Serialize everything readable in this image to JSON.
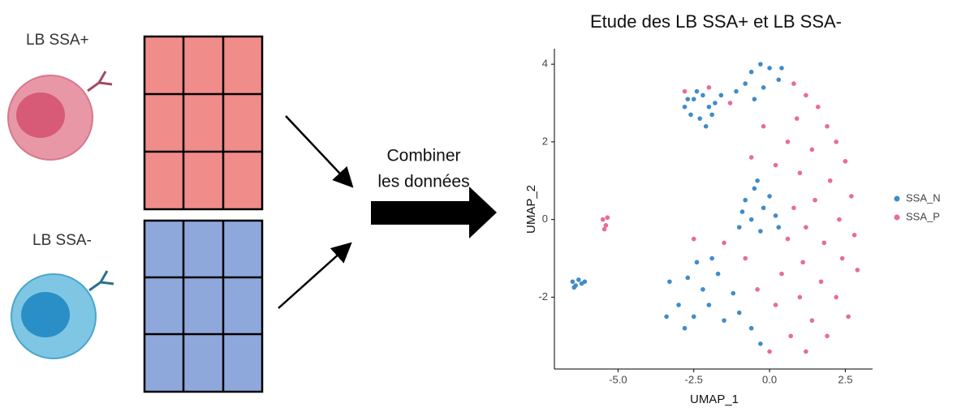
{
  "labels": {
    "cell_positive": "LB SSA+",
    "cell_negative": "LB SSA-",
    "combine_line1": "Combiner",
    "combine_line2": "les données"
  },
  "chart_data": {
    "type": "scatter",
    "title": "Etude des LB SSA+ et LB SSA-",
    "xlabel": "UMAP_1",
    "ylabel": "UMAP_2",
    "xlim": [
      -7.1,
      3.4
    ],
    "ylim": [
      -3.85,
      4.4
    ],
    "xticks": [
      {
        "value": -5,
        "label": "-5.0"
      },
      -2.5,
      {
        "value": 0,
        "label": "0.0"
      },
      2.5
    ],
    "yticks": [
      -2,
      0,
      2,
      4
    ],
    "series": [
      {
        "name": "SSA_N",
        "color": "#3f8ccb",
        "x": [
          -6.5,
          -6.4,
          -6.3,
          -6.2,
          -6.45,
          -6.1,
          -2.8,
          -2.5,
          -2.2,
          -2.0,
          -1.8,
          -2.6,
          -2.3,
          -1.9,
          -2.4,
          -2.1,
          -2.7,
          -1.6,
          -0.6,
          -0.3,
          0.0,
          0.3,
          -0.8,
          -0.2,
          0.4,
          -1.1,
          -0.5,
          -0.8,
          -0.5,
          -0.2,
          0.0,
          -0.6,
          -0.3,
          0.2,
          -0.9,
          -0.4,
          0.3,
          -1.0,
          -3.3,
          -3.0,
          -2.7,
          -2.5,
          -2.2,
          -2.0,
          -1.7,
          -1.5,
          -1.2,
          -2.8,
          -1.9,
          -1.0,
          -0.6,
          -3.4,
          -2.4,
          -0.3
        ],
        "y": [
          -1.6,
          -1.7,
          -1.55,
          -1.65,
          -1.75,
          -1.6,
          2.9,
          3.1,
          3.2,
          2.9,
          3.0,
          2.7,
          2.6,
          2.7,
          3.3,
          2.4,
          3.1,
          3.2,
          3.8,
          4.0,
          3.9,
          3.6,
          3.5,
          3.4,
          3.9,
          3.3,
          3.1,
          0.5,
          0.8,
          0.3,
          0.6,
          0.0,
          -0.3,
          0.1,
          0.2,
          1.0,
          -0.2,
          -0.2,
          -1.6,
          -2.2,
          -1.5,
          -2.5,
          -1.8,
          -2.2,
          -1.4,
          -2.6,
          -1.9,
          -2.8,
          -1.0,
          -2.4,
          -2.8,
          -2.5,
          -1.1,
          -3.2
        ]
      },
      {
        "name": "SSA_P",
        "color": "#e86b9b",
        "x": [
          -5.5,
          -5.4,
          -5.45,
          -5.35,
          -2.8,
          -2.0,
          -1.3,
          0.8,
          1.2,
          1.6,
          0.9,
          1.9,
          2.2,
          1.4,
          0.6,
          2.5,
          1.0,
          2.0,
          2.7,
          1.5,
          0.8,
          2.3,
          1.2,
          2.8,
          1.8,
          0.6,
          2.4,
          1.1,
          2.9,
          1.7,
          0.4,
          2.2,
          1.0,
          2.6,
          1.4,
          0.2,
          1.9,
          0.7,
          0.0,
          1.2,
          -0.8,
          -1.5,
          -2.5,
          -0.4,
          -0.2,
          -0.6,
          0.2
        ],
        "y": [
          0.0,
          -0.15,
          -0.25,
          0.05,
          3.3,
          3.4,
          3.0,
          3.5,
          3.2,
          2.9,
          2.6,
          2.4,
          2.0,
          1.8,
          2.0,
          1.5,
          1.2,
          1.0,
          0.6,
          0.5,
          0.3,
          0.0,
          -0.2,
          -0.4,
          -0.6,
          -0.5,
          -1.0,
          -1.1,
          -1.3,
          -1.6,
          -1.4,
          -2.0,
          -2.0,
          -2.5,
          -2.6,
          -2.2,
          -3.0,
          -3.0,
          -3.4,
          -3.4,
          -1.0,
          -0.6,
          -0.5,
          -1.8,
          2.4,
          1.6,
          1.4
        ]
      }
    ]
  }
}
